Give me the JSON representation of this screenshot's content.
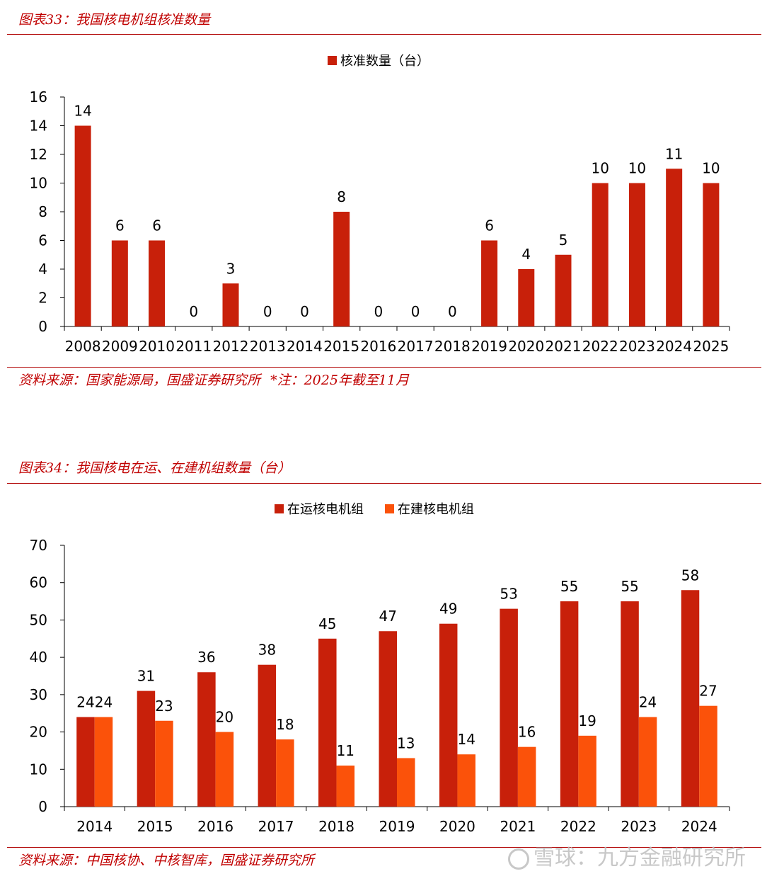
{
  "chart1": {
    "figure_title": "图表33：我国核电机组核准数量",
    "source": "资料来源：国家能源局，国盛证券研究所",
    "note": "*注：2025年截至11月"
  },
  "chart2": {
    "figure_title": "图表34：我国核电在运、在建机组数量（台）",
    "source": "资料来源：中国核协、中核智库，国盛证券研究所"
  },
  "watermark": "雪球：九方金融研究所",
  "colors": {
    "primary": "#c8200a",
    "secondary": "#fb520a",
    "rule": "#b00000",
    "title": "#c00000"
  },
  "chart_data": [
    {
      "type": "bar",
      "title": "",
      "categories": [
        "2008",
        "2009",
        "2010",
        "2011",
        "2012",
        "2013",
        "2014",
        "2015",
        "2016",
        "2017",
        "2018",
        "2019",
        "2020",
        "2021",
        "2022",
        "2023",
        "2024",
        "2025"
      ],
      "series": [
        {
          "name": "核准数量（台）",
          "values": [
            14,
            6,
            6,
            0,
            3,
            0,
            0,
            8,
            0,
            0,
            0,
            6,
            4,
            5,
            10,
            10,
            11,
            10
          ]
        }
      ],
      "ylim": [
        0,
        16
      ],
      "yticks": [
        0,
        2,
        4,
        6,
        8,
        10,
        12,
        14,
        16
      ],
      "xlabel": "",
      "ylabel": "",
      "legend": "top-center",
      "grid": false
    },
    {
      "type": "bar",
      "title": "",
      "categories": [
        "2014",
        "2015",
        "2016",
        "2017",
        "2018",
        "2019",
        "2020",
        "2021",
        "2022",
        "2023",
        "2024"
      ],
      "series": [
        {
          "name": "在运核电机组",
          "values": [
            24,
            31,
            36,
            38,
            45,
            47,
            49,
            53,
            55,
            55,
            58
          ]
        },
        {
          "name": "在建核电机组",
          "values": [
            24,
            23,
            20,
            18,
            11,
            13,
            14,
            16,
            19,
            24,
            27
          ]
        }
      ],
      "ylim": [
        0,
        70
      ],
      "yticks": [
        0,
        10,
        20,
        30,
        40,
        50,
        60,
        70
      ],
      "xlabel": "",
      "ylabel": "",
      "legend": "top-center",
      "grid": false
    }
  ]
}
